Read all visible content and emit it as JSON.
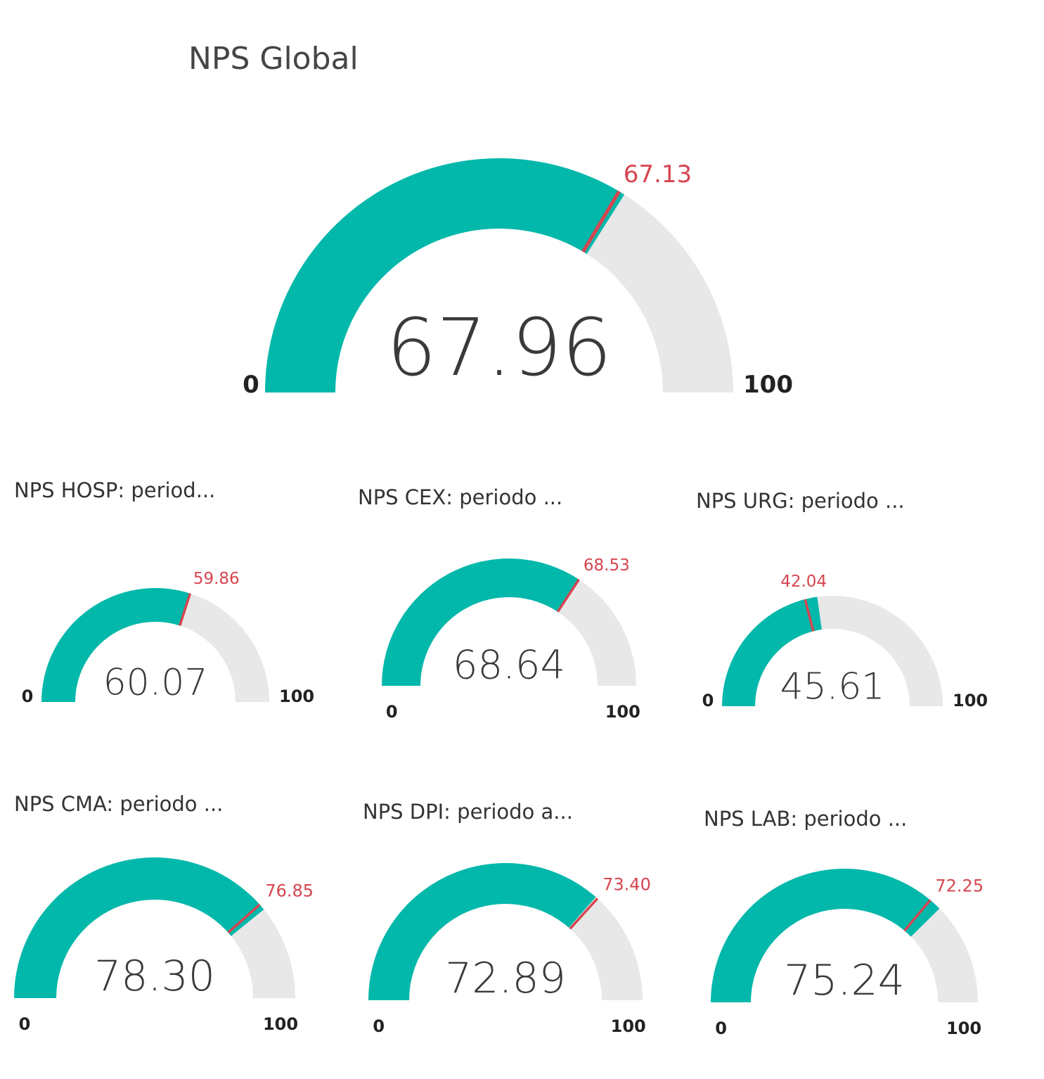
{
  "colors": {
    "fill": "#01b8aa",
    "track": "#e8e8e8",
    "target": "#d64550",
    "value_text": "#3a3a3a"
  },
  "main": {
    "title": "NPS Global"
  },
  "cards": [
    {
      "id": "global",
      "title": "NPS Global",
      "value": "67.96",
      "target": "67.13",
      "min": "0",
      "max": "100"
    },
    {
      "id": "hosp",
      "title": "NPS HOSP: period...",
      "value": "60.07",
      "target": "59.86",
      "min": "0",
      "max": "100"
    },
    {
      "id": "cex",
      "title": "NPS CEX: periodo ...",
      "value": "68.64",
      "target": "68.53",
      "min": "0",
      "max": "100"
    },
    {
      "id": "urg",
      "title": "NPS URG: periodo ...",
      "value": "45.61",
      "target": "42.04",
      "min": "0",
      "max": "100"
    },
    {
      "id": "cma",
      "title": "NPS CMA: periodo ...",
      "value": "78.30",
      "target": "76.85",
      "min": "0",
      "max": "100"
    },
    {
      "id": "dpi",
      "title": "NPS DPI: periodo a...",
      "value": "72.89",
      "target": "73.40",
      "min": "0",
      "max": "100"
    },
    {
      "id": "lab",
      "title": "NPS LAB: periodo ...",
      "value": "75.24",
      "target": "72.25",
      "min": "0",
      "max": "100"
    }
  ],
  "chart_data": [
    {
      "type": "gauge",
      "title": "NPS Global",
      "value": 67.96,
      "target": 67.13,
      "min": 0,
      "max": 100
    },
    {
      "type": "gauge",
      "title": "NPS HOSP: period...",
      "value": 60.07,
      "target": 59.86,
      "min": 0,
      "max": 100
    },
    {
      "type": "gauge",
      "title": "NPS CEX: periodo ...",
      "value": 68.64,
      "target": 68.53,
      "min": 0,
      "max": 100
    },
    {
      "type": "gauge",
      "title": "NPS URG: periodo ...",
      "value": 45.61,
      "target": 42.04,
      "min": 0,
      "max": 100
    },
    {
      "type": "gauge",
      "title": "NPS CMA: periodo ...",
      "value": 78.3,
      "target": 76.85,
      "min": 0,
      "max": 100
    },
    {
      "type": "gauge",
      "title": "NPS DPI: periodo a...",
      "value": 72.89,
      "target": 73.4,
      "min": 0,
      "max": 100
    },
    {
      "type": "gauge",
      "title": "NPS LAB: periodo ...",
      "value": 75.24,
      "target": 72.25,
      "min": 0,
      "max": 100
    }
  ]
}
